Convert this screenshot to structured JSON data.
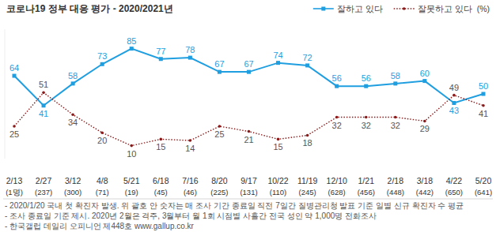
{
  "chart_data": {
    "type": "line",
    "title": "코로나19 정부 대응 평가 - 2020/2021년",
    "ylabel": "(%)",
    "categories": [
      "2/13",
      "2/27",
      "3/12",
      "4/8",
      "5/21",
      "6/18",
      "7/16",
      "8/20",
      "9/17",
      "10/22",
      "11/19",
      "12/10",
      "1/21",
      "2/18",
      "3/18",
      "4/22",
      "5/20"
    ],
    "sublabels": [
      "(1명)",
      "(237)",
      "(300)",
      "(71)",
      "(19)",
      "(45)",
      "(46)",
      "(225)",
      "(131)",
      "(110)",
      "(245)",
      "(628)",
      "(456)",
      "(448)",
      "(442)",
      "(650)",
      "(641)"
    ],
    "series": [
      {
        "name": "잘하고 있다",
        "color": "#1f9ee0",
        "marker": "square",
        "line_style": "solid",
        "values": [
          64,
          41,
          58,
          73,
          85,
          77,
          78,
          67,
          67,
          74,
          72,
          56,
          56,
          58,
          60,
          43,
          50
        ]
      },
      {
        "name": "잘못하고 있다",
        "color": "#8b1a1a",
        "marker": "circle",
        "line_style": "dotted",
        "values": [
          25,
          51,
          34,
          20,
          10,
          15,
          14,
          25,
          21,
          15,
          18,
          32,
          32,
          32,
          29,
          49,
          41
        ]
      }
    ],
    "ylim": [
      0,
      100
    ],
    "data_labels": true,
    "tick_labels": "x",
    "legend": "top-right",
    "notes": [
      "- 2020/1/20 국내 첫 확진자 발생. 위 괄호 안 숫자는 매 조사 기간 종료일 직전 7일간 질병관리청 발표 기준 일별 신규 확진자 수 평균",
      "- 조사 종료일 기준 제시. 2020년 2월은 격주, 3월부터 월 1회 시점별 사흘간 전국 성인 약 1,000명 전화조사",
      "- 한국갤럽 데일리 오피니언 제448호 www.gallup.co.kr"
    ]
  }
}
